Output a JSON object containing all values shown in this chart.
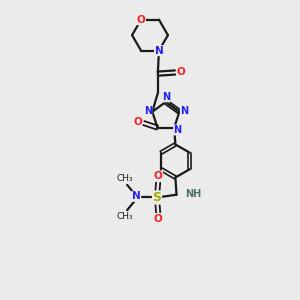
{
  "bg_color": "#ebebeb",
  "bond_color": "#1a1a1a",
  "N_color": "#2020ff",
  "O_color": "#ff2020",
  "S_color": "#aaaa00",
  "NH_color": "#507070",
  "fig_width": 3.0,
  "fig_height": 3.0,
  "dpi": 100,
  "xlim": [
    0,
    10
  ],
  "ylim": [
    0,
    13
  ]
}
